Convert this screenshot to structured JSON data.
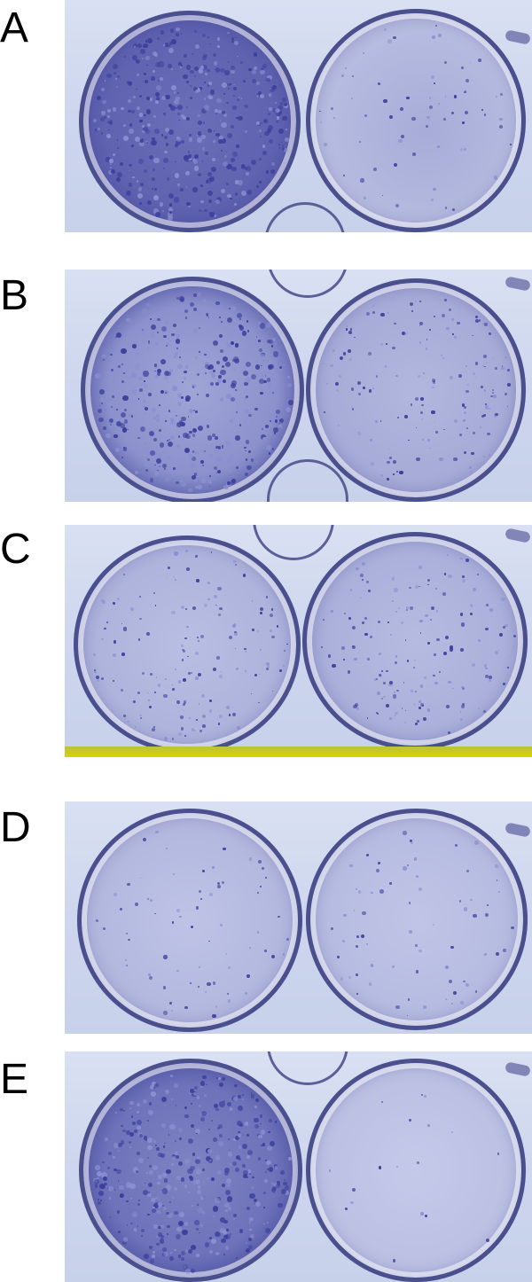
{
  "figure": {
    "panels": [
      {
        "label": "A",
        "left_density": "high",
        "right_density": "low"
      },
      {
        "label": "B",
        "left_density": "high",
        "right_density": "medium"
      },
      {
        "label": "C",
        "left_density": "medium",
        "right_density": "medium"
      },
      {
        "label": "D",
        "left_density": "low",
        "right_density": "low"
      },
      {
        "label": "E",
        "left_density": "high",
        "right_density": "very-low"
      }
    ]
  },
  "colors": {
    "stain": "#3d3f9c",
    "stain_light": "#8a8fd0",
    "plate": "#cdd6ee",
    "label": "#000000"
  }
}
